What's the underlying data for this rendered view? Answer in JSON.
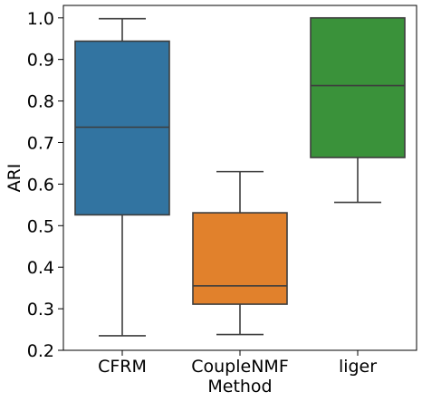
{
  "chart_data": {
    "type": "box",
    "xlabel": "Method",
    "ylabel": "ARI",
    "ylim": [
      0.2,
      1.03
    ],
    "yticks": [
      0.2,
      0.3,
      0.4,
      0.5,
      0.6,
      0.7,
      0.8,
      0.9,
      1.0
    ],
    "ytick_labels": [
      "0.2",
      "0.3",
      "0.4",
      "0.5",
      "0.6",
      "0.7",
      "0.8",
      "0.9",
      "1.0"
    ],
    "grid": false,
    "legend": "none",
    "categories": [
      "CFRM",
      "CoupleNMF",
      "liger"
    ],
    "boxes": [
      {
        "category": "CFRM",
        "whisker_low": 0.235,
        "q1": 0.526,
        "median": 0.737,
        "q3": 0.944,
        "whisker_high": 0.998,
        "color": "#3274a1"
      },
      {
        "category": "CoupleNMF",
        "whisker_low": 0.238,
        "q1": 0.311,
        "median": 0.355,
        "q3": 0.531,
        "whisker_high": 0.63,
        "color": "#e1812c"
      },
      {
        "category": "liger",
        "whisker_low": 0.556,
        "q1": 0.664,
        "median": 0.837,
        "q3": 1.0,
        "whisker_high": 1.0,
        "color": "#3a923a"
      }
    ],
    "line_color": "#3d3d3d"
  }
}
